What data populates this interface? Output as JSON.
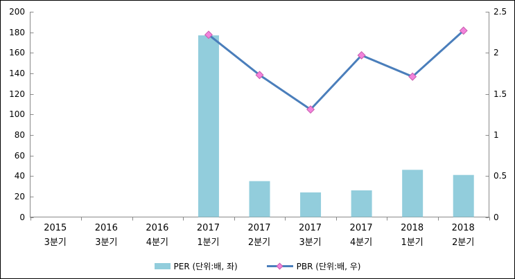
{
  "chart_data": {
    "type": "combo-bar-line",
    "title": "",
    "categories": [
      {
        "year": "2015",
        "quarter": "3분기"
      },
      {
        "year": "2016",
        "quarter": "3분기"
      },
      {
        "year": "2016",
        "quarter": "4분기"
      },
      {
        "year": "2017",
        "quarter": "1분기"
      },
      {
        "year": "2017",
        "quarter": "2분기"
      },
      {
        "year": "2017",
        "quarter": "3분기"
      },
      {
        "year": "2017",
        "quarter": "4분기"
      },
      {
        "year": "2018",
        "quarter": "1분기"
      },
      {
        "year": "2018",
        "quarter": "2분기"
      }
    ],
    "series": [
      {
        "name": "PER (단위:배, 좌)",
        "type": "bar",
        "axis": "left",
        "color": "#92CDDC",
        "values": [
          null,
          null,
          null,
          177,
          35,
          24,
          26,
          46,
          41
        ]
      },
      {
        "name": "PBR (단위:배, 우)",
        "type": "line",
        "axis": "right",
        "color": "#4A7EBB",
        "marker": "diamond",
        "marker_fill": "#F383DC",
        "marker_stroke": "#C75DAD",
        "values": [
          null,
          null,
          null,
          2.22,
          1.73,
          1.31,
          1.97,
          1.71,
          2.27
        ]
      }
    ],
    "left_axis": {
      "min": 0,
      "max": 200,
      "step": 20
    },
    "right_axis": {
      "min": 0,
      "max": 2.5,
      "step": 0.5
    },
    "grid": false,
    "legend_position": "bottom",
    "axis_color": "#898989",
    "text_color": "#000000",
    "background": "#FFFFFF",
    "border_color": "#000000"
  }
}
